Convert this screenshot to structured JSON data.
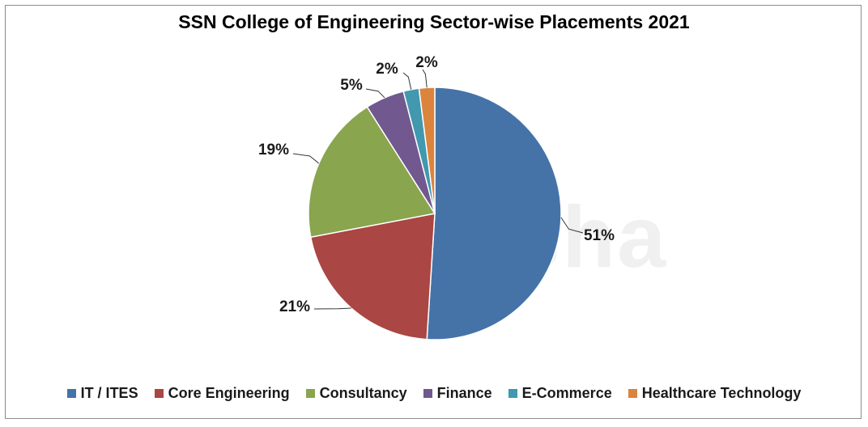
{
  "chart_data": {
    "type": "pie",
    "title": "SSN College of Engineering Sector-wise Placements 2021",
    "categories": [
      "IT / ITES",
      "Core Engineering",
      "Consultancy",
      "Finance",
      "E-Commerce",
      "Healthcare Technology"
    ],
    "values": [
      51,
      21,
      19,
      5,
      2,
      2
    ],
    "data_labels": [
      "51%",
      "21%",
      "19%",
      "5%",
      "2%",
      "2%"
    ],
    "colors": [
      "#4573A8",
      "#AA4643",
      "#89A54E",
      "#71588F",
      "#4198AF",
      "#DB843D"
    ],
    "legend_position": "bottom"
  },
  "watermark": {
    "text": "shiksha"
  }
}
